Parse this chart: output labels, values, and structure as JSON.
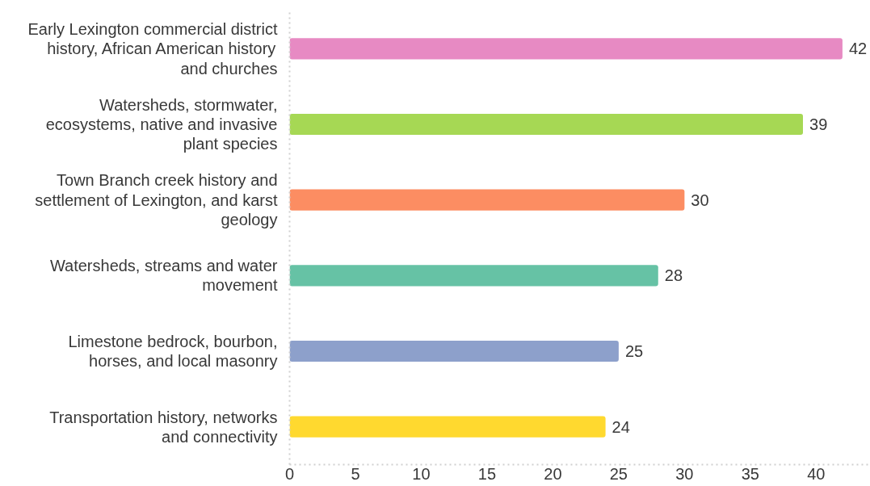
{
  "chart_data": {
    "type": "bar",
    "orientation": "horizontal",
    "categories": [
      "Early Lexington commercial district history, African American history and churches",
      "Watersheds, stormwater, ecosystems, native and invasive plant species",
      "Town Branch creek history and settlement of Lexington, and karst geology",
      "Watersheds, streams and water movement",
      "Limestone bedrock, bourbon, horses, and local masonry",
      "Transportation history, networks and connectivity"
    ],
    "values": [
      42,
      39,
      30,
      28,
      25,
      24
    ],
    "colors": [
      "#e78ac3",
      "#a6d854",
      "#fc8d62",
      "#66c2a5",
      "#8da0cb",
      "#ffd92f"
    ],
    "xlim": [
      0,
      44
    ],
    "xticks": [
      0,
      5,
      10,
      15,
      20,
      25,
      30,
      35,
      40
    ],
    "data_labels": true
  }
}
